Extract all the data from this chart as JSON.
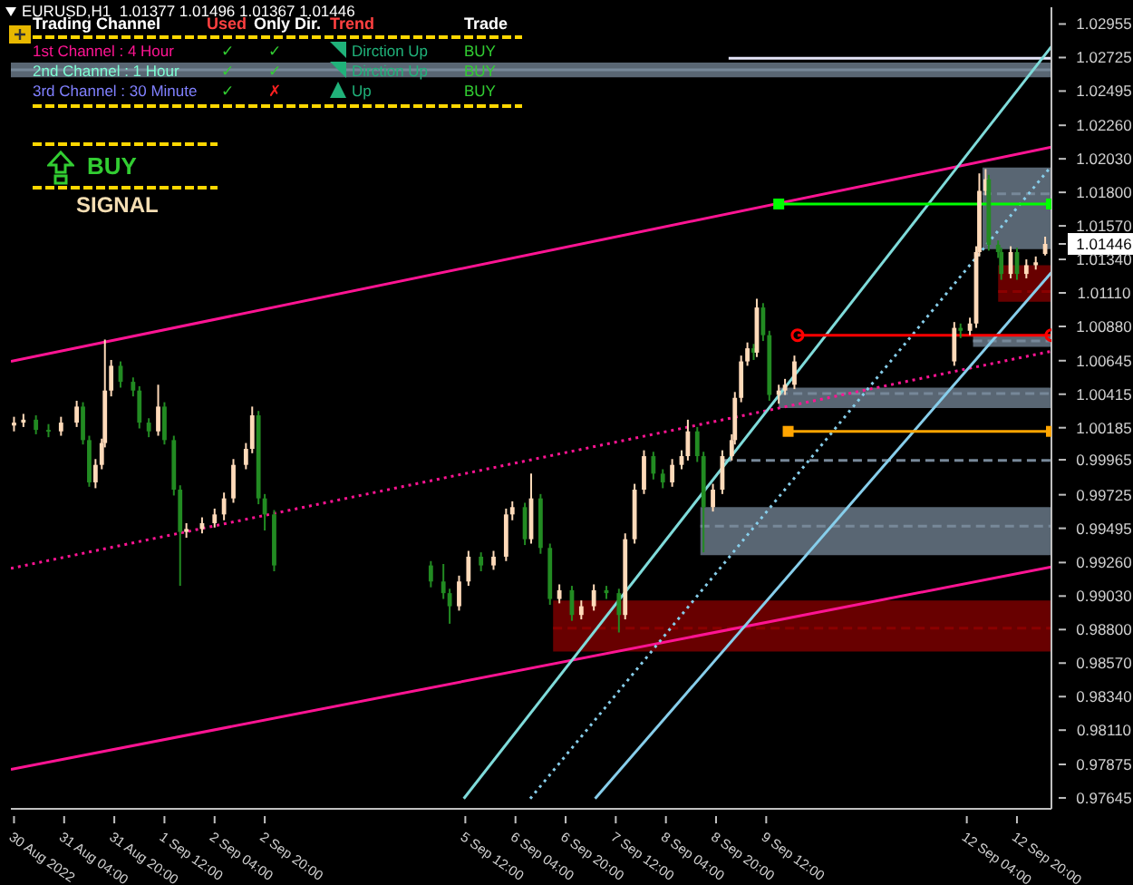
{
  "chart_data": {
    "type": "candlestick",
    "title": "EURUSD,H1  1.01377 1.01496 1.01367 1.01446",
    "annotations": [
      "Trading Channel",
      "Used",
      "Only Dir.",
      "Trend",
      "Trade",
      "1st Channel : 4 Hour",
      "✓",
      "✓",
      "Dirction Up",
      "BUY",
      "2nd Channel : 1 Hour",
      "✓",
      "✓",
      "Dirction Up",
      "BUY",
      "3rd Channel : 30 Minute",
      "✓",
      "✗",
      "Up",
      "BUY",
      "BUY",
      "SIGNAL"
    ],
    "x": [
      "2022-08-30T12:00",
      "2022-08-30T15:00",
      "2022-08-30T19:00",
      "2022-08-30T23:00",
      "2022-08-31T03:00",
      "2022-08-31T08:00",
      "2022-08-31T10:00",
      "2022-08-31T12:00",
      "2022-08-31T14:00",
      "2022-08-31T16:00",
      "2022-08-31T17:00",
      "2022-08-31T19:00",
      "2022-08-31T22:00",
      "2022-09-01T02:00",
      "2022-09-01T04:00",
      "2022-09-01T07:00",
      "2022-09-01T10:00",
      "2022-09-01T12:00",
      "2022-09-01T15:00",
      "2022-09-01T17:00",
      "2022-09-01T19:00",
      "2022-09-02T00:00",
      "2022-09-02T04:00",
      "2022-09-02T07:00",
      "2022-09-02T10:00",
      "2022-09-02T14:00",
      "2022-09-02T16:00",
      "2022-09-02T18:00",
      "2022-09-02T20:00",
      "2022-09-02T23:00",
      "2022-09-05T01:00",
      "2022-09-05T05:00",
      "2022-09-05T07:00",
      "2022-09-05T10:00",
      "2022-09-05T13:00",
      "2022-09-05T17:00",
      "2022-09-05T21:00",
      "2022-09-06T01:00",
      "2022-09-06T03:00",
      "2022-09-06T07:00",
      "2022-09-06T09:00",
      "2022-09-06T12:00",
      "2022-09-06T15:00",
      "2022-09-06T18:00",
      "2022-09-06T22:00",
      "2022-09-07T01:00",
      "2022-09-07T05:00",
      "2022-09-07T09:00",
      "2022-09-07T13:00",
      "2022-09-07T15:00",
      "2022-09-07T18:00",
      "2022-09-07T21:00",
      "2022-09-08T00:00",
      "2022-09-08T03:00",
      "2022-09-08T06:00",
      "2022-09-08T09:00",
      "2022-09-08T11:00",
      "2022-09-08T14:00",
      "2022-09-08T16:00",
      "2022-09-08T19:00",
      "2022-09-08T22:00",
      "2022-09-09T01:00",
      "2022-09-09T02:00",
      "2022-09-09T04:00",
      "2022-09-09T06:00",
      "2022-09-09T08:00",
      "2022-09-09T09:00",
      "2022-09-09T11:00",
      "2022-09-09T13:00",
      "2022-09-09T16:00",
      "2022-09-09T18:00",
      "2022-09-09T21:00",
      "2022-09-12T00:00",
      "2022-09-12T02:00",
      "2022-09-12T05:00",
      "2022-09-12T07:00",
      "2022-09-12T08:00",
      "2022-09-12T10:00",
      "2022-09-12T11:00",
      "2022-09-12T14:00",
      "2022-09-12T15:00",
      "2022-09-12T18:00",
      "2022-09-12T20:00",
      "2022-09-12T23:00",
      "2022-09-13T02:00",
      "2022-09-13T05:00"
    ],
    "ohlc": [
      [
        1.002,
        1.0026,
        1.0016,
        1.0022
      ],
      [
        1.0022,
        1.0028,
        1.0019,
        1.0024
      ],
      [
        1.0024,
        1.0027,
        1.0014,
        1.0017
      ],
      [
        1.0017,
        1.0021,
        1.0012,
        1.0016
      ],
      [
        1.0016,
        1.0026,
        1.0013,
        1.0022
      ],
      [
        1.0022,
        1.0037,
        1.0019,
        1.0033
      ],
      [
        1.0033,
        1.0036,
        1.0007,
        1.001
      ],
      [
        1.001,
        1.0013,
        0.9978,
        0.9981
      ],
      [
        0.9981,
        0.9997,
        0.9977,
        0.9993
      ],
      [
        0.9993,
        1.0011,
        0.999,
        1.0008
      ],
      [
        1.0008,
        1.0079,
        1.0005,
        1.0044
      ],
      [
        1.0044,
        1.0065,
        1.004,
        1.0061
      ],
      [
        1.0061,
        1.0064,
        1.0046,
        1.005
      ],
      [
        1.005,
        1.0053,
        1.004,
        1.0044
      ],
      [
        1.0044,
        1.0047,
        1.0018,
        1.0022
      ],
      [
        1.0022,
        1.0025,
        1.0012,
        1.0016
      ],
      [
        1.0016,
        1.0048,
        1.0013,
        1.0033
      ],
      [
        1.0033,
        1.0036,
        1.0007,
        1.001
      ],
      [
        1.001,
        1.0013,
        0.9972,
        0.9976
      ],
      [
        0.9976,
        0.9979,
        0.991,
        0.9947
      ],
      [
        0.9947,
        0.9953,
        0.9943,
        0.9949
      ],
      [
        0.9949,
        0.9957,
        0.9946,
        0.9953
      ],
      [
        0.9953,
        0.9963,
        0.995,
        0.9959
      ],
      [
        0.9959,
        0.9974,
        0.9955,
        0.997
      ],
      [
        0.997,
        0.9997,
        0.9967,
        0.9993
      ],
      [
        0.9993,
        1.0008,
        0.999,
        1.0004
      ],
      [
        1.0004,
        1.0033,
        1.0001,
        1.0027
      ],
      [
        1.0027,
        1.003,
        0.9966,
        0.997
      ],
      [
        0.997,
        0.9973,
        0.9948,
        0.9959
      ],
      [
        0.9959,
        0.9962,
        0.992,
        0.9924
      ],
      [
        0.9924,
        0.9927,
        0.9909,
        0.9913
      ],
      [
        0.9913,
        0.9925,
        0.9901,
        0.9905
      ],
      [
        0.9905,
        0.9908,
        0.9884,
        0.9896
      ],
      [
        0.9896,
        0.9917,
        0.9893,
        0.9913
      ],
      [
        0.9913,
        0.9934,
        0.991,
        0.993
      ],
      [
        0.993,
        0.9933,
        0.992,
        0.9924
      ],
      [
        0.9924,
        0.9934,
        0.9921,
        0.993
      ],
      [
        0.993,
        0.9963,
        0.9927,
        0.9959
      ],
      [
        0.9959,
        0.9968,
        0.9955,
        0.9964
      ],
      [
        0.9964,
        0.9967,
        0.9938,
        0.9942
      ],
      [
        0.9942,
        0.9987,
        0.9939,
        0.997
      ],
      [
        0.997,
        0.9973,
        0.9932,
        0.9936
      ],
      [
        0.9936,
        0.9939,
        0.9897,
        0.9901
      ],
      [
        0.9901,
        0.9911,
        0.9898,
        0.9907
      ],
      [
        0.9907,
        0.991,
        0.9886,
        0.989
      ],
      [
        0.989,
        0.99,
        0.9887,
        0.9896
      ],
      [
        0.9896,
        0.9911,
        0.9893,
        0.9907
      ],
      [
        0.9907,
        0.991,
        0.9901,
        0.9905
      ],
      [
        0.9905,
        0.9908,
        0.9878,
        0.989
      ],
      [
        0.989,
        0.9946,
        0.9887,
        0.9942
      ],
      [
        0.9942,
        0.998,
        0.9939,
        0.9976
      ],
      [
        0.9976,
        1.0003,
        0.9973,
        0.9999
      ],
      [
        0.9999,
        1.0002,
        0.9983,
        0.9987
      ],
      [
        0.9987,
        0.999,
        0.9977,
        0.9981
      ],
      [
        0.9981,
        0.9997,
        0.9978,
        0.9993
      ],
      [
        0.9993,
        1.0003,
        0.999,
        0.9999
      ],
      [
        0.9999,
        1.0024,
        0.9996,
        1.0016
      ],
      [
        1.0016,
        1.0019,
        0.9995,
        0.9999
      ],
      [
        0.9999,
        1.0002,
        0.9933,
        0.9964
      ],
      [
        0.9964,
        0.998,
        0.9961,
        0.9976
      ],
      [
        0.9976,
        1.0003,
        0.9973,
        0.9999
      ],
      [
        0.9999,
        1.0014,
        0.9996,
        1.001
      ],
      [
        1.001,
        1.0043,
        1.0007,
        1.0039
      ],
      [
        1.0039,
        1.0068,
        1.0036,
        1.0064
      ],
      [
        1.0064,
        1.0077,
        1.0061,
        1.0073
      ],
      [
        1.0073,
        1.0076,
        1.0065,
        1.007
      ],
      [
        1.007,
        1.0107,
        1.0067,
        1.0101
      ],
      [
        1.0101,
        1.0104,
        1.0078,
        1.0082
      ],
      [
        1.0082,
        1.0085,
        1.0037,
        1.0041
      ],
      [
        1.0041,
        1.0048,
        1.0035,
        1.0044
      ],
      [
        1.0044,
        1.0052,
        1.0041,
        1.0048
      ],
      [
        1.0048,
        1.0068,
        1.0045,
        1.0064
      ],
      [
        1.0064,
        1.0091,
        1.0061,
        1.0087
      ],
      [
        1.0087,
        1.009,
        1.008,
        1.0085
      ],
      [
        1.0085,
        1.0094,
        1.0082,
        1.009
      ],
      [
        1.009,
        1.0143,
        1.0087,
        1.0139
      ],
      [
        1.0139,
        1.0193,
        1.0136,
        1.0181
      ],
      [
        1.0181,
        1.0196,
        1.0178,
        1.0189
      ],
      [
        1.0189,
        1.0192,
        1.014,
        1.0144
      ],
      [
        1.0144,
        1.0147,
        1.0135,
        1.0139
      ],
      [
        1.0139,
        1.0142,
        1.012,
        1.0124
      ],
      [
        1.0124,
        1.0143,
        1.0121,
        1.0139
      ],
      [
        1.0139,
        1.0142,
        1.012,
        1.0124
      ],
      [
        1.0124,
        1.0134,
        1.0121,
        1.013
      ],
      [
        1.013,
        1.0136,
        1.0127,
        1.0132
      ],
      [
        1.01377,
        1.01496,
        1.01367,
        1.01446
      ]
    ],
    "colors": [
      "#ffdab9",
      "#ffdab9",
      "#228b22",
      "#228b22",
      "#ffdab9",
      "#ffdab9",
      "#228b22",
      "#228b22",
      "#ffdab9",
      "#ffdab9",
      "#ffdab9",
      "#ffdab9",
      "#228b22",
      "#228b22",
      "#228b22",
      "#228b22",
      "#ffdab9",
      "#228b22",
      "#228b22",
      "#228b22",
      "#ffdab9",
      "#ffdab9",
      "#ffdab9",
      "#ffdab9",
      "#ffdab9",
      "#ffdab9",
      "#ffdab9",
      "#228b22",
      "#228b22",
      "#228b22",
      "#228b22",
      "#228b22",
      "#228b22",
      "#ffdab9",
      "#ffdab9",
      "#228b22",
      "#ffdab9",
      "#ffdab9",
      "#ffdab9",
      "#228b22",
      "#ffdab9",
      "#228b22",
      "#228b22",
      "#ffdab9",
      "#228b22",
      "#ffdab9",
      "#ffdab9",
      "#228b22",
      "#228b22",
      "#ffdab9",
      "#ffdab9",
      "#ffdab9",
      "#228b22",
      "#228b22",
      "#ffdab9",
      "#ffdab9",
      "#ffdab9",
      "#228b22",
      "#228b22",
      "#ffdab9",
      "#ffdab9",
      "#ffdab9",
      "#ffdab9",
      "#ffdab9",
      "#ffdab9",
      "#228b22",
      "#ffdab9",
      "#228b22",
      "#228b22",
      "#ffdab9",
      "#ffdab9",
      "#ffdab9",
      "#ffdab9",
      "#228b22",
      "#ffdab9",
      "#ffdab9",
      "#ffdab9",
      "#ffdab9",
      "#228b22",
      "#228b22",
      "#228b22",
      "#ffdab9",
      "#228b22",
      "#ffdab9",
      "#ffdab9",
      "#ffdab9"
    ],
    "series": [
      {
        "type": "line",
        "line_style": "solid",
        "color": "#778899",
        "x": [
          "2022-08-30T11:00",
          "2022-09-13T07:00"
        ],
        "values": [
          1.0264,
          1.0264
        ],
        "lower": [
          1.0259,
          1.0259
        ],
        "upper": [
          1.0269,
          1.0269
        ]
      },
      {
        "type": "line",
        "line_style": "dashed",
        "color": "#778899",
        "x": [
          "2022-09-12T09:00",
          "2022-09-13T07:00"
        ],
        "values": [
          1.0179,
          1.0179
        ],
        "lower": [
          1.0141,
          1.0141
        ],
        "upper": [
          1.0197,
          1.0197
        ]
      },
      {
        "type": "line",
        "line_style": "dashed",
        "color": "#8b0000",
        "x": [
          "2022-09-12T14:00",
          "2022-09-13T07:00"
        ],
        "values": [
          1.0112,
          1.0112
        ],
        "lower": [
          1.0105,
          1.0105
        ],
        "upper": [
          1.013,
          1.013
        ]
      },
      {
        "type": "line",
        "line_style": "dashed",
        "color": "#778899",
        "x": [
          "2022-09-12T06:00",
          "2022-09-13T07:00"
        ],
        "values": [
          1.0078,
          1.0078
        ],
        "lower": [
          1.0074,
          1.0074
        ],
        "upper": [
          1.0082,
          1.0082
        ]
      },
      {
        "type": "line",
        "line_style": "dashed",
        "color": "#778899",
        "x": [
          "2022-09-09T16:00",
          "2022-09-13T07:00"
        ],
        "values": [
          1.0042,
          1.0042
        ],
        "lower": [
          1.0032,
          1.0032
        ],
        "upper": [
          1.0046,
          1.0046
        ]
      },
      {
        "type": "line",
        "line_style": "dashed",
        "color": "#778899",
        "x": [
          "2022-09-08T15:00",
          "2022-09-13T07:00"
        ],
        "values": [
          0.9951,
          0.9951
        ],
        "lower": [
          0.9931,
          0.9931
        ],
        "upper": [
          0.9964,
          0.9964
        ]
      },
      {
        "type": "line",
        "line_style": "dashed",
        "color": "#8b0000",
        "x": [
          "2022-09-06T16:00",
          "2022-09-13T07:00"
        ],
        "values": [
          0.9881,
          0.9881
        ],
        "lower": [
          0.9865,
          0.9865
        ],
        "upper": [
          0.99,
          0.99
        ]
      },
      {
        "type": "line",
        "line_style": "dashed",
        "color": "#778899",
        "x": [
          "2022-09-08T22:00",
          "2022-09-13T07:00"
        ],
        "values": [
          0.9996,
          0.9996
        ]
      },
      {
        "type": "line",
        "line_style": "solid",
        "color": "#e6e6fa",
        "x": [
          "2022-09-09T00:00",
          "2022-09-13T07:00"
        ],
        "values": [
          1.0272,
          1.0272
        ]
      },
      {
        "type": "line",
        "line_style": "solid",
        "color": "#ff1493",
        "x": [
          "2022-08-30T11:00",
          "2022-09-13T07:00"
        ],
        "values": [
          1.0064,
          1.0211
        ]
      },
      {
        "type": "line",
        "line_style": "solid",
        "color": "#ff1493",
        "x": [
          "2022-08-30T11:00",
          "2022-09-13T07:00"
        ],
        "values": [
          0.9784,
          0.9923
        ]
      },
      {
        "type": "line",
        "line_style": "dotted",
        "color": "#ff1493",
        "x": [
          "2022-08-30T11:00",
          "2022-09-13T07:00"
        ],
        "values": [
          0.9922,
          1.0071
        ]
      },
      {
        "type": "line",
        "line_style": "solid",
        "color": "#7fdbda",
        "x": [
          "2022-09-05T11:30",
          "2022-09-13T07:00"
        ],
        "values": [
          0.9764,
          1.028
        ]
      },
      {
        "type": "line",
        "line_style": "solid",
        "color": "#87ceeb",
        "x": [
          "2022-09-07T05:24",
          "2022-09-13T07:00"
        ],
        "values": [
          0.9764,
          1.0125
        ]
      },
      {
        "type": "line",
        "line_style": "dotted",
        "color": "#87ceeb",
        "x": [
          "2022-09-06T08:42",
          "2022-09-13T07:00"
        ],
        "values": [
          0.9764,
          1.0198
        ]
      },
      {
        "type": "line",
        "line_style": "solid",
        "marker": "square",
        "color": "#00ff00",
        "x": [
          "2022-09-09T16:00",
          "2022-09-13T07:00"
        ],
        "values": [
          1.0172,
          1.0172
        ]
      },
      {
        "type": "line",
        "line_style": "solid",
        "marker": "circle",
        "color": "#ff0000",
        "x": [
          "2022-09-09T22:00",
          "2022-09-13T07:00"
        ],
        "values": [
          1.0082,
          1.0082
        ]
      },
      {
        "type": "line",
        "line_style": "solid",
        "marker": "square",
        "color": "#ffa500",
        "x": [
          "2022-09-09T19:00",
          "2022-09-13T07:00"
        ],
        "values": [
          1.0016,
          1.0016
        ]
      }
    ],
    "xlim": [
      "2022-08-30T11:00",
      "2022-09-13T07:00"
    ],
    "xticks": [
      {
        "value": "2022-08-30T12:00",
        "label": "30 Aug 2022"
      },
      {
        "value": "2022-08-31T04:00",
        "label": "31 Aug 04:00"
      },
      {
        "value": "2022-08-31T20:00",
        "label": "31 Aug 20:00"
      },
      {
        "value": "2022-09-01T12:00",
        "label": "1 Sep 12:00"
      },
      {
        "value": "2022-09-02T04:00",
        "label": "2 Sep 04:00"
      },
      {
        "value": "2022-09-02T20:00",
        "label": "2 Sep 20:00"
      },
      {
        "value": "2022-09-05T12:00",
        "label": "5 Sep 12:00"
      },
      {
        "value": "2022-09-06T04:00",
        "label": "6 Sep 04:00"
      },
      {
        "value": "2022-09-06T20:00",
        "label": "6 Sep 20:00"
      },
      {
        "value": "2022-09-07T12:00",
        "label": "7 Sep 12:00"
      },
      {
        "value": "2022-09-08T04:00",
        "label": "8 Sep 04:00"
      },
      {
        "value": "2022-09-08T20:00",
        "label": "8 Sep 20:00"
      },
      {
        "value": "2022-09-09T12:00",
        "label": "9 Sep 12:00"
      },
      {
        "value": "2022-09-12T04:00",
        "label": "12 Sep 04:00"
      },
      {
        "value": "2022-09-12T20:00",
        "label": "12 Sep 20:00"
      }
    ],
    "ylim": [
      0.9757,
      1.0307
    ],
    "yticks": [
      1.02955,
      1.02725,
      1.02495,
      {
        "value": 1.0226,
        "label": "1.02260"
      },
      {
        "value": 1.0203,
        "label": "1.02030"
      },
      {
        "value": 1.018,
        "label": "1.01800"
      },
      {
        "value": 1.0157,
        "label": "1.01570"
      },
      1.01446,
      {
        "value": 1.0134,
        "label": "1.01340"
      },
      {
        "value": 1.0111,
        "label": "1.01110"
      },
      {
        "value": 1.0088,
        "label": "1.00880"
      },
      1.00645,
      1.00415,
      1.00185,
      0.99965,
      0.99725,
      0.99495,
      {
        "value": 0.9926,
        "label": "0.99260"
      },
      {
        "value": 0.9903,
        "label": "0.99030"
      },
      {
        "value": 0.988,
        "label": "0.98800"
      },
      {
        "value": 0.9857,
        "label": "0.98570"
      },
      {
        "value": 0.9834,
        "label": "0.98340"
      },
      {
        "value": 0.9811,
        "label": "0.98110"
      },
      0.97875,
      0.97645
    ]
  }
}
